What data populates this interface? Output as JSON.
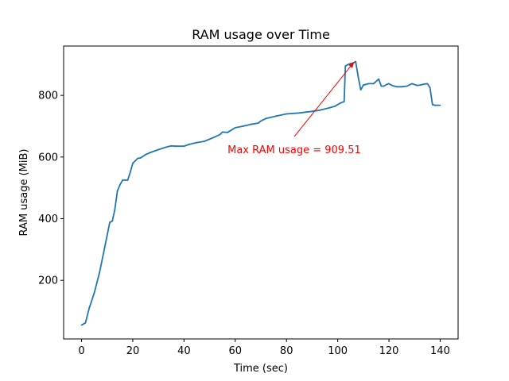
{
  "chart_data": {
    "type": "line",
    "title": "RAM usage over Time",
    "xlabel": "Time (sec)",
    "ylabel": "RAM usage (MiB)",
    "xlim": [
      -7,
      147
    ],
    "ylim": [
      10,
      960
    ],
    "xticks": [
      0,
      20,
      40,
      60,
      80,
      100,
      120,
      140
    ],
    "yticks": [
      200,
      400,
      600,
      800
    ],
    "grid": false,
    "colors": {
      "line": "#1f77b4",
      "annotation": "#ff0000"
    },
    "series": [
      {
        "x": [
          0,
          1.5,
          3,
          5,
          7,
          9,
          11,
          12,
          13,
          14,
          15,
          16,
          17,
          18,
          19,
          20,
          21,
          22,
          23,
          25,
          27,
          30,
          33,
          35,
          37,
          40,
          42,
          45,
          48,
          52,
          54,
          55,
          57,
          60,
          63,
          66,
          69,
          70,
          72,
          76,
          80,
          85,
          90,
          93,
          96,
          99,
          101,
          102.5,
          103,
          104,
          105,
          106,
          107,
          108,
          109,
          110,
          112,
          114,
          116,
          117,
          118,
          119,
          120,
          121,
          122,
          123,
          125,
          127,
          129,
          131,
          133,
          134,
          135,
          136,
          137,
          138,
          140
        ],
        "values": [
          55,
          62,
          110,
          160,
          225,
          305,
          388,
          392,
          430,
          490,
          510,
          525,
          525,
          525,
          550,
          580,
          588,
          596,
          597,
          608,
          615,
          624,
          632,
          636,
          635,
          635,
          641,
          647,
          651,
          665,
          673,
          681,
          680,
          695,
          700,
          706,
          710,
          717,
          725,
          733,
          740,
          743,
          748,
          752,
          758,
          765,
          775,
          780,
          895,
          900,
          903,
          905,
          909.51,
          860,
          818,
          833,
          838,
          838,
          853,
          830,
          830,
          835,
          838,
          833,
          830,
          828,
          828,
          830,
          838,
          832,
          835,
          837,
          838,
          825,
          770,
          768,
          768
        ]
      }
    ],
    "annotation": {
      "text": "Max RAM usage = 909.51",
      "xy": [
        106.5,
        909.51
      ],
      "xytext": [
        57,
        612
      ]
    }
  }
}
